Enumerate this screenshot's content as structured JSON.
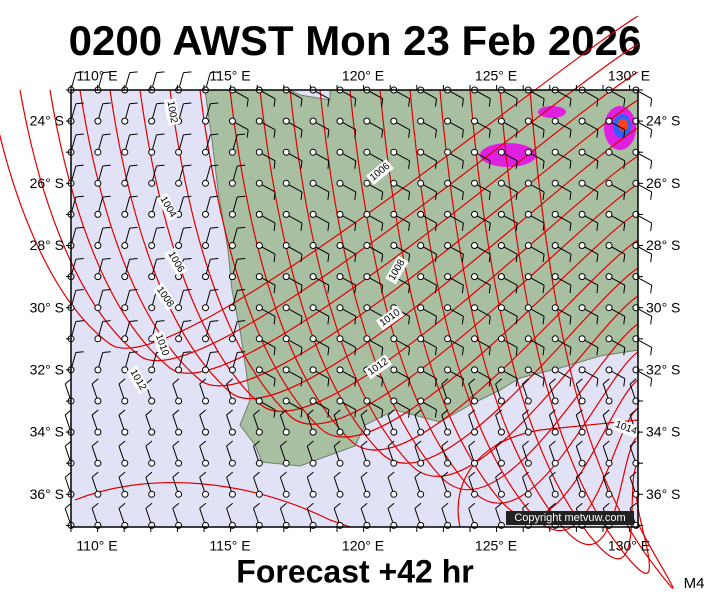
{
  "header": {
    "title": "0200 AWST Mon 23 Feb 2026"
  },
  "longitude_labels": [
    "110° E",
    "115° E",
    "120° E",
    "125° E",
    "130° E"
  ],
  "latitude_labels": [
    "24° S",
    "26° S",
    "28° S",
    "30° S",
    "32° S",
    "34° S",
    "36° S"
  ],
  "isobar_labels": [
    "1002",
    "1004",
    "1006",
    "1006",
    "1008",
    "1008",
    "1010",
    "1010",
    "1012",
    "1012",
    "1014"
  ],
  "copyright": "Copyright metvuw.com",
  "footer": {
    "caption": "Forecast +42 hr",
    "model": "M4"
  }
}
